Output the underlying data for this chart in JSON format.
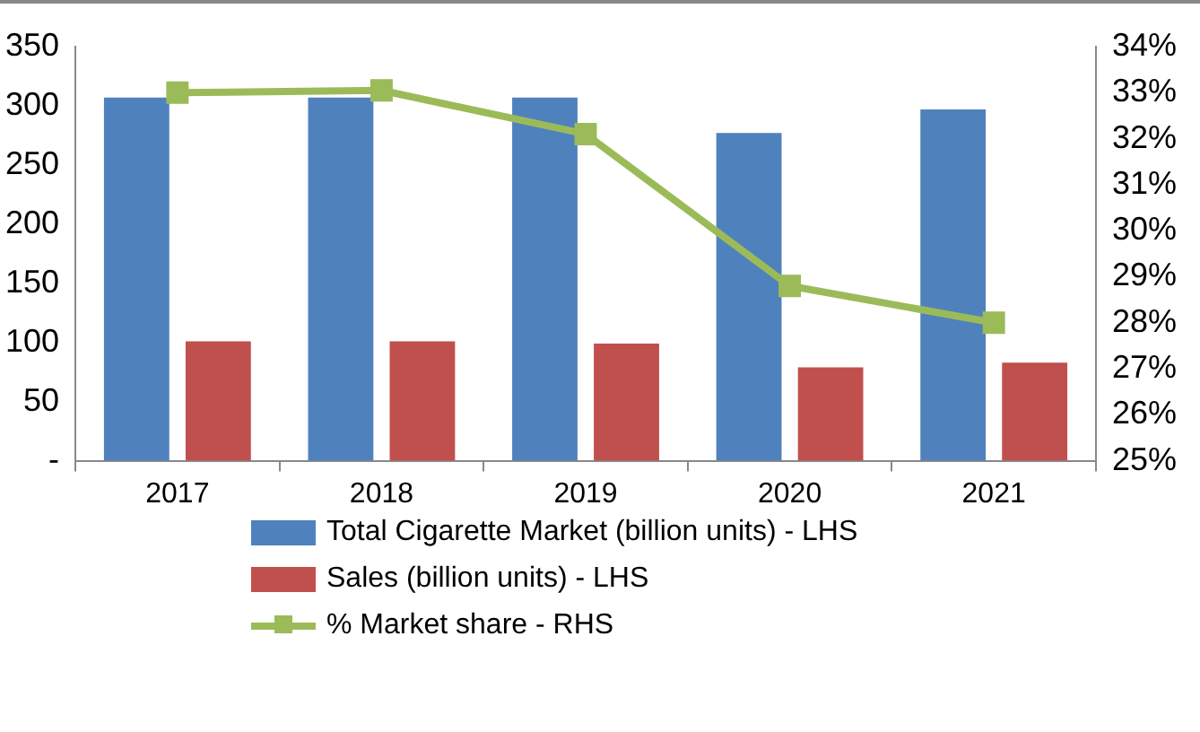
{
  "chart_data": {
    "type": "bar",
    "categories": [
      "2017",
      "2018",
      "2019",
      "2020",
      "2021"
    ],
    "series": [
      {
        "name": "Total Cigarette Market (billion units) - LHS",
        "color": "#4f81bd",
        "values": [
          307,
          307,
          307,
          277,
          297
        ]
      },
      {
        "name": "Sales (billion units) - LHS",
        "color": "#c0504d",
        "values": [
          101,
          101,
          99,
          79,
          83
        ]
      },
      {
        "name": "% Market share - RHS",
        "color": "#9bbb59",
        "type": "line",
        "axis": "y2",
        "marker": "square",
        "values": [
          33.0,
          33.05,
          32.1,
          28.8,
          28.0
        ]
      }
    ],
    "ylim": [
      0,
      350
    ],
    "yticks": [
      {
        "value": 0,
        "label": "-"
      },
      50,
      100,
      150,
      200,
      250,
      300,
      350
    ],
    "y2lim": [
      25,
      34
    ],
    "y2ticks": [
      {
        "value": 25,
        "label": "25%"
      },
      {
        "value": 26,
        "label": "26%"
      },
      {
        "value": 27,
        "label": "27%"
      },
      {
        "value": 28,
        "label": "28%"
      },
      {
        "value": 29,
        "label": "29%"
      },
      {
        "value": 30,
        "label": "30%"
      },
      {
        "value": 31,
        "label": "31%"
      },
      {
        "value": 32,
        "label": "32%"
      },
      {
        "value": 33,
        "label": "33%"
      },
      {
        "value": 34,
        "label": "34%"
      }
    ],
    "grid": false,
    "legend": "bottom"
  }
}
